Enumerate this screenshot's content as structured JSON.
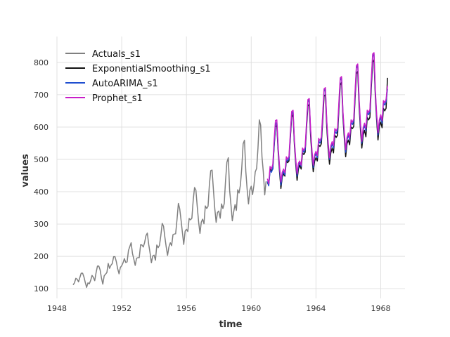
{
  "chart_data": {
    "type": "line",
    "title": "",
    "xlabel": "time",
    "ylabel": "values",
    "xlim": [
      1948,
      1969.5
    ],
    "ylim": [
      70,
      880
    ],
    "xticks": [
      1948,
      1952,
      1956,
      1960,
      1964,
      1968
    ],
    "yticks": [
      100,
      200,
      300,
      400,
      500,
      600,
      700,
      800
    ],
    "grid": true,
    "legend_position": "top-left",
    "series": [
      {
        "name": "Actuals_s1",
        "color": "#808080",
        "start": 1949.0,
        "step_months": 1,
        "values": [
          112,
          118,
          132,
          129,
          121,
          135,
          148,
          148,
          136,
          119,
          104,
          118,
          115,
          126,
          141,
          135,
          125,
          149,
          170,
          170,
          158,
          133,
          114,
          140,
          145,
          150,
          178,
          163,
          172,
          178,
          199,
          199,
          184,
          162,
          146,
          166,
          171,
          180,
          193,
          181,
          183,
          218,
          230,
          242,
          209,
          191,
          172,
          194,
          196,
          196,
          236,
          235,
          229,
          243,
          264,
          272,
          237,
          211,
          180,
          201,
          204,
          188,
          235,
          227,
          234,
          264,
          302,
          293,
          259,
          229,
          203,
          229,
          242,
          233,
          267,
          269,
          270,
          315,
          364,
          347,
          312,
          274,
          237,
          278,
          284,
          277,
          317,
          313,
          318,
          374,
          413,
          405,
          355,
          306,
          271,
          306,
          315,
          301,
          356,
          348,
          355,
          422,
          465,
          467,
          404,
          347,
          305,
          336,
          340,
          318,
          362,
          348,
          363,
          435,
          491,
          505,
          404,
          359,
          310,
          337,
          360,
          342,
          406,
          396,
          420,
          472,
          548,
          559,
          463,
          407,
          362,
          405,
          417,
          391,
          419,
          461,
          472,
          535,
          622,
          606,
          508,
          461,
          390,
          432
        ]
      },
      {
        "name": "ExponentialSmoothing_s1",
        "color": "#111111",
        "start": 1961.0,
        "step_months": 1,
        "values": [
          428,
          420,
          470,
          465,
          470,
          540,
          600,
          605,
          520,
          460,
          410,
          445,
          455,
          448,
          495,
          490,
          495,
          565,
          630,
          640,
          545,
          485,
          435,
          470,
          482,
          470,
          520,
          515,
          522,
          595,
          665,
          670,
          575,
          510,
          462,
          495,
          505,
          495,
          545,
          540,
          548,
          620,
          695,
          700,
          600,
          535,
          485,
          520,
          535,
          520,
          575,
          568,
          575,
          655,
          730,
          738,
          632,
          565,
          508,
          548,
          560,
          545,
          600,
          595,
          602,
          688,
          765,
          772,
          662,
          590,
          535,
          575,
          590,
          570,
          630,
          622,
          630,
          720,
          800,
          808,
          695,
          620,
          560,
          602,
          615,
          598,
          658,
          650,
          658,
          752
        ]
      },
      {
        "name": "AutoARIMA_s1",
        "color": "#1f4fd0",
        "start": 1961.0,
        "step_months": 1,
        "values": [
          432,
          418,
          465,
          460,
          472,
          545,
          605,
          615,
          530,
          470,
          420,
          450,
          462,
          452,
          500,
          495,
          502,
          572,
          640,
          648,
          555,
          495,
          448,
          480,
          490,
          478,
          530,
          522,
          530,
          605,
          678,
          685,
          590,
          525,
          475,
          508,
          518,
          505,
          558,
          550,
          560,
          635,
          710,
          718,
          615,
          550,
          500,
          535,
          548,
          535,
          588,
          580,
          590,
          668,
          745,
          752,
          645,
          578,
          522,
          560,
          575,
          560,
          615,
          608,
          618,
          702,
          782,
          790,
          678,
          605,
          550,
          590,
          605,
          588,
          645,
          638,
          648,
          735,
          818,
          826,
          708,
          632,
          575,
          615,
          630,
          612,
          675,
          668,
          678,
          718
        ]
      },
      {
        "name": "Prophet_s1",
        "color": "#c81ec8",
        "start": 1961.0,
        "step_months": 1,
        "values": [
          440,
          425,
          478,
          470,
          485,
          560,
          620,
          622,
          535,
          478,
          430,
          460,
          470,
          458,
          508,
          500,
          510,
          580,
          648,
          652,
          560,
          500,
          455,
          488,
          495,
          482,
          535,
          528,
          538,
          612,
          685,
          688,
          595,
          530,
          482,
          515,
          525,
          512,
          565,
          558,
          568,
          642,
          718,
          722,
          620,
          555,
          505,
          542,
          555,
          542,
          595,
          588,
          598,
          678,
          752,
          756,
          650,
          585,
          530,
          568,
          582,
          565,
          622,
          615,
          625,
          710,
          790,
          795,
          685,
          612,
          556,
          598,
          612,
          595,
          652,
          645,
          655,
          745,
          826,
          830,
          715,
          640,
          582,
          622,
          638,
          620,
          682,
          675,
          686,
          728
        ]
      }
    ]
  }
}
